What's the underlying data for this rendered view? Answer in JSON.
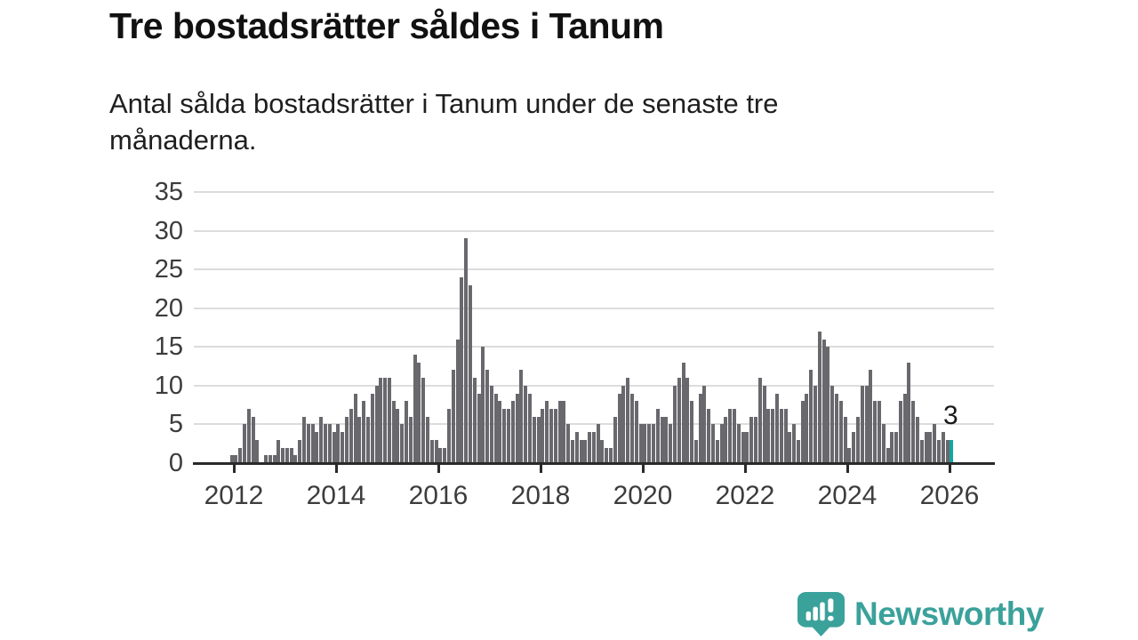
{
  "header": {
    "title": "Tre bostadsrätter såldes i Tanum",
    "subtitle": "Antal sålda bostadsrätter i Tanum under de senaste tre månaderna."
  },
  "chart_data": {
    "type": "bar",
    "title": "Tre bostadsrätter såldes i Tanum",
    "subtitle": "Antal sålda bostadsrätter i Tanum under de senaste tre månaderna.",
    "frequency": "monthly",
    "x_start": "2011-12",
    "x_end": "2026-01",
    "xlabel": "",
    "ylabel": "",
    "ylim": [
      0,
      35
    ],
    "grid": true,
    "y_ticks": [
      0,
      5,
      10,
      15,
      20,
      25,
      30,
      35
    ],
    "x_tick_years": [
      "2012",
      "2014",
      "2016",
      "2018",
      "2020",
      "2022",
      "2024",
      "2026"
    ],
    "values": [
      1,
      1,
      2,
      5,
      7,
      6,
      3,
      0,
      1,
      1,
      1,
      3,
      2,
      2,
      2,
      1,
      3,
      6,
      5,
      5,
      4,
      6,
      5,
      5,
      4,
      5,
      4,
      6,
      7,
      9,
      6,
      8,
      6,
      9,
      10,
      11,
      11,
      11,
      8,
      7,
      5,
      8,
      6,
      14,
      13,
      11,
      6,
      3,
      3,
      2,
      2,
      7,
      12,
      16,
      24,
      29,
      23,
      11,
      9,
      15,
      12,
      10,
      9,
      8,
      7,
      7,
      8,
      9,
      12,
      10,
      9,
      6,
      6,
      7,
      8,
      7,
      7,
      8,
      8,
      5,
      3,
      4,
      3,
      3,
      4,
      4,
      5,
      3,
      2,
      2,
      6,
      9,
      10,
      11,
      9,
      8,
      5,
      5,
      5,
      5,
      7,
      6,
      6,
      5,
      10,
      11,
      13,
      11,
      8,
      3,
      9,
      10,
      7,
      5,
      3,
      5,
      6,
      7,
      7,
      5,
      4,
      4,
      6,
      6,
      11,
      10,
      7,
      7,
      9,
      7,
      7,
      4,
      5,
      3,
      8,
      9,
      12,
      10,
      17,
      16,
      15,
      10,
      9,
      8,
      6,
      2,
      4,
      6,
      10,
      10,
      12,
      8,
      8,
      5,
      2,
      4,
      4,
      8,
      9,
      13,
      8,
      6,
      3,
      4,
      4,
      5,
      3,
      4,
      3,
      3
    ],
    "bar_color": "#68686d",
    "highlight": {
      "index": 169,
      "label": "3",
      "color": "#12a6a3"
    },
    "legend": []
  },
  "footer": {
    "brand": "Newsworthy",
    "brand_color": "#3ba19b"
  }
}
